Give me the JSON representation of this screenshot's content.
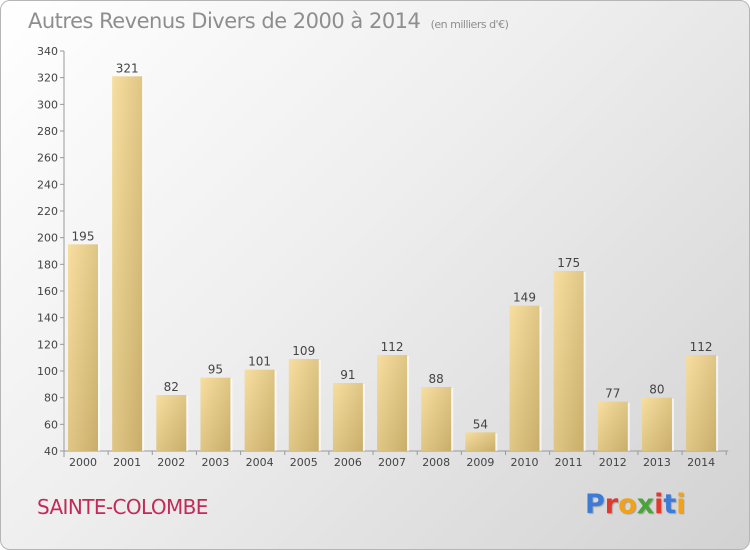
{
  "title": "Autres Revenus Divers de 2000 à 2014",
  "subtitle": "(en milliers d'€)",
  "location": "SAINTE-COLOMBE",
  "logo": {
    "letters": [
      "P",
      "r",
      "o",
      "x",
      "i",
      "t",
      "i"
    ]
  },
  "colors": {
    "title": "#8e8e8e",
    "location": "#c22a5a",
    "bar_light": "#f7dea0",
    "bar_dark": "#c9ae6a",
    "logo": [
      "#3d7bd6",
      "#e2392f",
      "#f2a11a",
      "#4aa43b",
      "#e2392f",
      "#3d7bd6",
      "#f2a11a"
    ]
  },
  "chart_data": {
    "type": "bar",
    "categories": [
      "2000",
      "2001",
      "2002",
      "2003",
      "2004",
      "2005",
      "2006",
      "2007",
      "2008",
      "2009",
      "2010",
      "2011",
      "2012",
      "2013",
      "2014"
    ],
    "values": [
      195,
      321,
      82,
      95,
      101,
      109,
      91,
      112,
      88,
      54,
      149,
      175,
      77,
      80,
      112
    ],
    "ylim": [
      40,
      340
    ],
    "yticks": [
      40,
      60,
      80,
      100,
      120,
      140,
      160,
      180,
      200,
      220,
      240,
      260,
      280,
      300,
      320,
      340
    ],
    "grid": false,
    "data_labels": true
  }
}
